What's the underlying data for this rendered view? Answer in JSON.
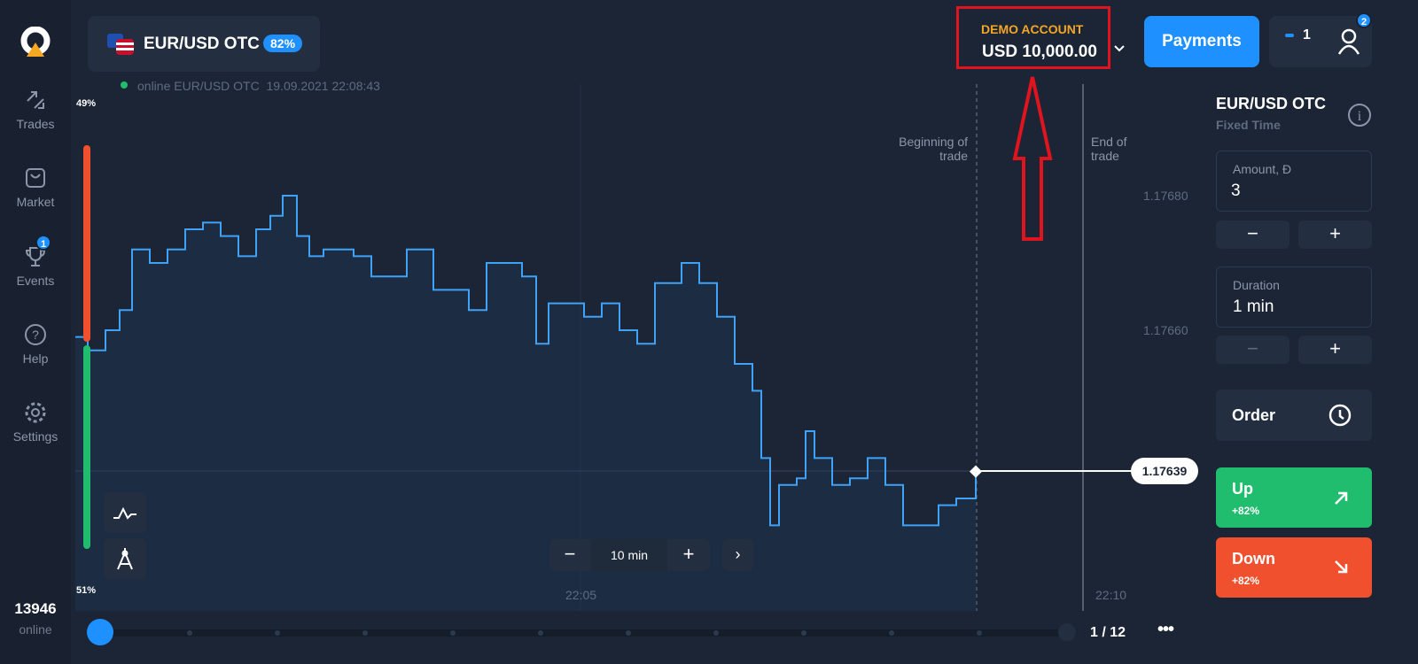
{
  "sidebar": {
    "items": [
      {
        "label": "Trades",
        "icon": "arrows-icon"
      },
      {
        "label": "Market",
        "icon": "bag-icon"
      },
      {
        "label": "Events",
        "icon": "trophy-icon",
        "badge": "1"
      },
      {
        "label": "Help",
        "icon": "help-icon"
      },
      {
        "label": "Settings",
        "icon": "gear-icon"
      }
    ],
    "online_count": "13946",
    "online_label": "online"
  },
  "header": {
    "pair": "EUR/USD OTC",
    "payout": "82%",
    "status": "online EUR/USD OTC",
    "datetime": "19.09.2021 22:08:43",
    "account_label": "DEMO ACCOUNT",
    "balance": "USD 10,000.00",
    "payments": "Payments",
    "trades_count": "1",
    "profile_badge": "2"
  },
  "chart": {
    "top_pct": "49%",
    "bottom_pct": "51%",
    "beginning": "Beginning of trade",
    "end": "End of trade",
    "zoom": "10 min",
    "page": "1 / 12",
    "current_price": "1.17639",
    "colors": {
      "line": "#3fa2f7",
      "up": "#1fbd6d",
      "down": "#f0502e"
    }
  },
  "panel": {
    "pair": "EUR/USD OTC",
    "mode": "Fixed Time",
    "amount_label": "Amount, Đ",
    "amount": "3",
    "duration_label": "Duration",
    "duration": "1 min",
    "order": "Order",
    "up": "Up",
    "up_pct": "+82%",
    "down": "Down",
    "down_pct": "+82%"
  },
  "chart_data": {
    "type": "line",
    "ylim": [
      1.1762,
      1.177
    ],
    "yticks": [
      "1.17680",
      "1.17660"
    ],
    "xticks": [
      "22:05",
      "22:10"
    ],
    "x": [
      "22:00:15",
      "22:00:22",
      "22:00:32",
      "22:00:40",
      "22:00:47",
      "22:00:57",
      "22:01:07",
      "22:01:17",
      "22:01:27",
      "22:01:37",
      "22:01:47",
      "22:01:57",
      "22:02:05",
      "22:02:12",
      "22:02:20",
      "22:02:27",
      "22:02:35",
      "22:02:42",
      "22:02:52",
      "22:03:02",
      "22:03:12",
      "22:03:22",
      "22:03:32",
      "22:03:37",
      "22:03:47",
      "22:03:57",
      "22:04:07",
      "22:04:17",
      "22:04:27",
      "22:04:35",
      "22:04:42",
      "22:04:52",
      "22:05:02",
      "22:05:12",
      "22:05:22",
      "22:05:32",
      "22:05:42",
      "22:05:52",
      "22:05:57",
      "22:06:07",
      "22:06:17",
      "22:06:27",
      "22:06:37",
      "22:06:42",
      "22:06:47",
      "22:06:52",
      "22:07:02",
      "22:07:07",
      "22:07:12",
      "22:07:22",
      "22:07:32",
      "22:07:42",
      "22:07:52",
      "22:08:02",
      "22:08:12",
      "22:08:22",
      "22:08:32",
      "22:08:43"
    ],
    "y": [
      1.17659,
      1.17657,
      1.1766,
      1.17663,
      1.17672,
      1.1767,
      1.17672,
      1.17675,
      1.17676,
      1.17674,
      1.17671,
      1.17675,
      1.17677,
      1.1768,
      1.17674,
      1.17671,
      1.17672,
      1.17672,
      1.17671,
      1.17668,
      1.17668,
      1.17672,
      1.17672,
      1.17666,
      1.17666,
      1.17663,
      1.1767,
      1.1767,
      1.17668,
      1.17658,
      1.17664,
      1.17664,
      1.17662,
      1.17664,
      1.1766,
      1.17658,
      1.17667,
      1.17667,
      1.1767,
      1.17667,
      1.17662,
      1.17655,
      1.17651,
      1.17641,
      1.17631,
      1.17637,
      1.17638,
      1.17645,
      1.17641,
      1.17637,
      1.17638,
      1.17641,
      1.17637,
      1.17631,
      1.17631,
      1.17634,
      1.17635,
      1.17639
    ],
    "beginning_of_trade": "22:08:43",
    "end_of_trade": "22:09:43"
  }
}
